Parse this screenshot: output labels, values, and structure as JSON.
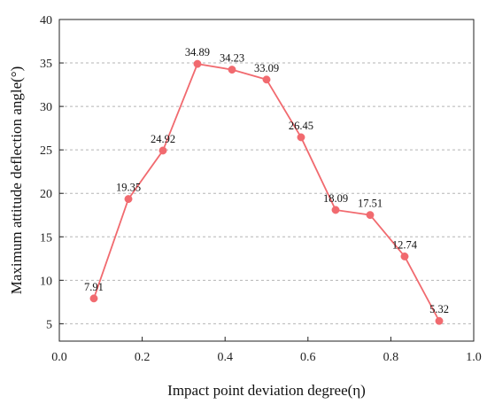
{
  "chart_data": {
    "type": "line",
    "title": "",
    "xlabel": "Impact point deviation degree(η)",
    "ylabel": "Maximum attitude deflection angle(°)",
    "xlim": [
      0.0,
      1.0
    ],
    "ylim": [
      3,
      40
    ],
    "x_ticks": [
      "0.0",
      "0.2",
      "0.4",
      "0.6",
      "0.8",
      "1.0"
    ],
    "y_ticks": [
      "5",
      "10",
      "15",
      "20",
      "25",
      "30",
      "35",
      "40"
    ],
    "grid": "horizontal dashed",
    "series": [
      {
        "color": "#f16a6f",
        "x": [
          0.0833,
          0.1667,
          0.25,
          0.3333,
          0.4167,
          0.5,
          0.5833,
          0.6667,
          0.75,
          0.8333,
          0.9167
        ],
        "values": [
          7.91,
          19.35,
          24.92,
          34.89,
          34.23,
          33.09,
          26.45,
          18.09,
          17.51,
          12.74,
          5.32
        ],
        "labels": [
          "7.91",
          "19.35",
          "24.92",
          "34.89",
          "34.23",
          "33.09",
          "26.45",
          "18.09",
          "17.51",
          "12.74",
          "5.32"
        ]
      }
    ]
  }
}
